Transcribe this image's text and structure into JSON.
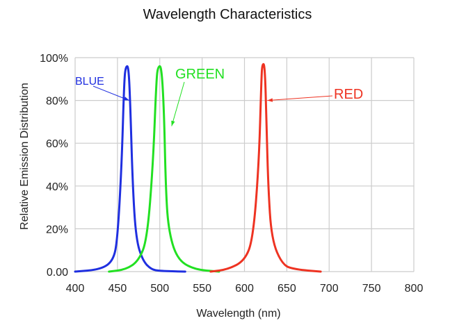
{
  "chart_data": {
    "type": "line",
    "title": "Wavelength Characteristics",
    "xlabel": "Wavelength (nm)",
    "ylabel": "Relative Emission Distribution",
    "xlim": [
      400,
      800
    ],
    "ylim": [
      0,
      100
    ],
    "grid": true,
    "x_ticks": [
      "400",
      "450",
      "500",
      "550",
      "600",
      "650",
      "700",
      "750",
      "800"
    ],
    "y_ticks": [
      "0.00",
      "20%",
      "40%",
      "60%",
      "80%",
      "100%"
    ],
    "series": [
      {
        "name": "BLUE",
        "color": "#1f2fe0",
        "x": [
          400,
          430,
          445,
          450,
          455,
          458,
          460,
          463,
          465,
          468,
          472,
          480,
          490,
          500,
          530
        ],
        "y": [
          0,
          1,
          5,
          15,
          50,
          90,
          96,
          96,
          80,
          40,
          15,
          5,
          1,
          0.3,
          0
        ]
      },
      {
        "name": "GREEN",
        "color": "#22e022",
        "x": [
          440,
          460,
          475,
          485,
          492,
          496,
          498,
          502,
          505,
          507,
          510,
          520,
          540,
          570
        ],
        "y": [
          0,
          1,
          5,
          15,
          50,
          90,
          96,
          96,
          75,
          40,
          20,
          6,
          1,
          0
        ]
      },
      {
        "name": "RED",
        "color": "#ee3322",
        "x": [
          560,
          580,
          600,
          610,
          617,
          620,
          621,
          624,
          626,
          628,
          632,
          645,
          660,
          690
        ],
        "y": [
          0,
          1,
          5,
          15,
          50,
          90,
          97,
          97,
          70,
          40,
          15,
          3,
          1,
          0
        ]
      }
    ],
    "annotations": [
      {
        "text": "BLUE",
        "points_to": [
          464,
          80
        ]
      },
      {
        "text": "GREEN",
        "points_to": [
          514,
          68
        ]
      },
      {
        "text": "RED",
        "points_to": [
          627,
          80
        ]
      }
    ]
  }
}
